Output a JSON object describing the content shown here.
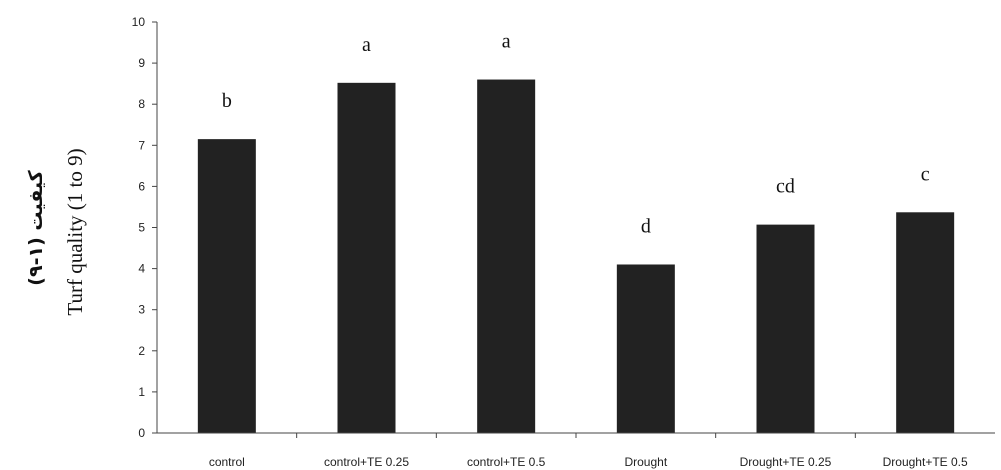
{
  "chart_data": {
    "type": "bar",
    "title": "",
    "xlabel": "",
    "ylabel": "Turf quality (1 to 9)",
    "ylabel_fa": "کیفیت (۱-۹)",
    "ylim": [
      0,
      10
    ],
    "y_ticks": [
      0,
      1,
      2,
      3,
      4,
      5,
      6,
      7,
      8,
      9,
      10
    ],
    "grid": false,
    "legend": "none",
    "bar_color": "#222222",
    "categories": [
      "control",
      "control+TE 0.25",
      "control+TE 0.5",
      "Drought",
      "Drought+TE 0.25",
      "Drought+TE 0.5"
    ],
    "values": [
      7.15,
      8.52,
      8.6,
      4.1,
      5.07,
      5.37
    ],
    "letters": [
      "b",
      "a",
      "a",
      "d",
      "cd",
      "c"
    ]
  }
}
